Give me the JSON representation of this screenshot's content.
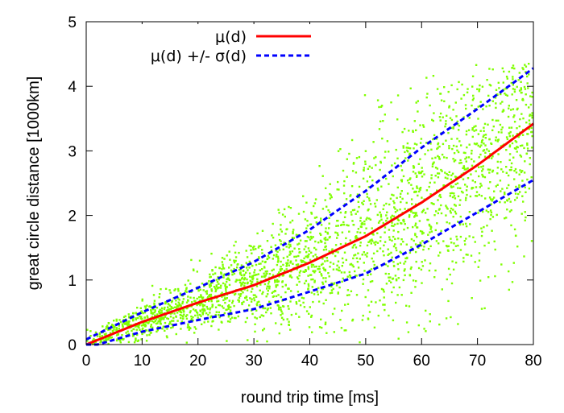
{
  "chart_data": {
    "type": "scatter",
    "title": "",
    "xlabel": "round trip time [ms]",
    "ylabel": "great circle distance [1000km]",
    "xlim": [
      0,
      80
    ],
    "ylim": [
      0,
      5
    ],
    "xticks": [
      "0",
      "10",
      "20",
      "30",
      "40",
      "50",
      "60",
      "70",
      "80"
    ],
    "yticks": [
      "0",
      "1",
      "2",
      "3",
      "4",
      "5"
    ],
    "grid": false,
    "legend_position": "top-center",
    "scatter_color": "#7fff00",
    "series": [
      {
        "name": "μ(d)",
        "style": "solid",
        "color": "#ff0000",
        "x": [
          0,
          10,
          20,
          30,
          40,
          50,
          60,
          70,
          80
        ],
        "y": [
          0.0,
          0.35,
          0.65,
          0.92,
          1.27,
          1.68,
          2.2,
          2.78,
          3.42
        ]
      },
      {
        "name": "μ(d) +/- σ(d)",
        "style": "dashed",
        "color": "#0000ff",
        "x": [
          0,
          10,
          20,
          30,
          40,
          50,
          60,
          70,
          80
        ],
        "y": [
          0.08,
          0.5,
          0.88,
          1.28,
          1.78,
          2.38,
          3.05,
          3.65,
          4.28
        ]
      },
      {
        "name": "",
        "legend": false,
        "style": "dashed",
        "color": "#0000ff",
        "x": [
          0,
          10,
          20,
          30,
          40,
          50,
          60,
          70,
          80
        ],
        "y": [
          -0.05,
          0.2,
          0.38,
          0.55,
          0.82,
          1.1,
          1.55,
          2.05,
          2.55
        ]
      }
    ]
  }
}
